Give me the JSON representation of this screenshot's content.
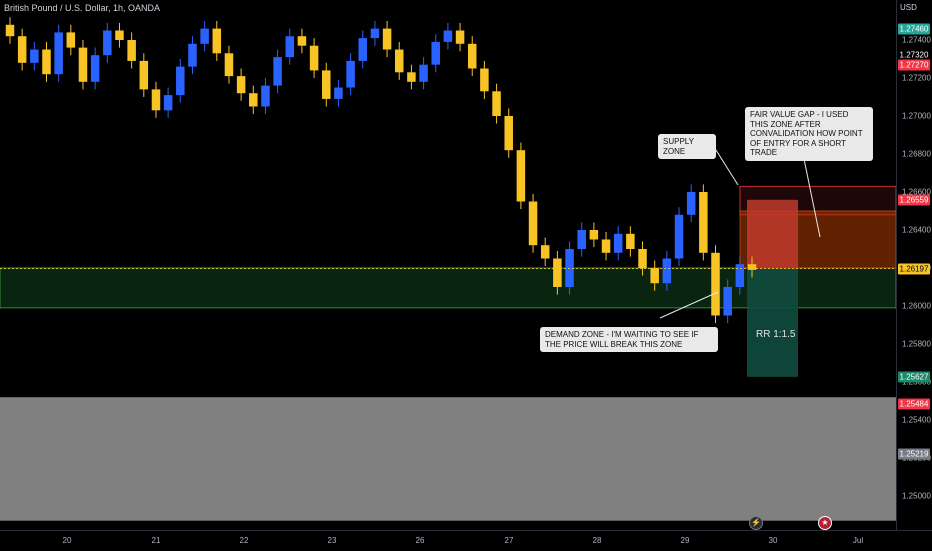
{
  "header": {
    "symbol_title": "British Pound / U.S. Dollar, 1h, OANDA"
  },
  "price_axis": {
    "currency": "USD",
    "ticks": [
      "1.27400",
      "1.27200",
      "1.27000",
      "1.26800",
      "1.26600",
      "1.26400",
      "1.26200",
      "1.26000",
      "1.25800",
      "1.25600",
      "1.25400",
      "1.25200",
      "1.25000"
    ],
    "badges": [
      {
        "label": "1.27460",
        "color": "#26a69a",
        "value": 1.2746
      },
      {
        "label": "1.27320",
        "color": "#000000",
        "value": 1.2732
      },
      {
        "label": "1.27270",
        "color": "#f23645",
        "value": 1.2727
      },
      {
        "label": "1.26559",
        "color": "#f23645",
        "value": 1.26559
      },
      {
        "label": "1.26197",
        "color": "#f7c325",
        "value": 1.26197
      },
      {
        "label": "1.25627",
        "color": "#1b8a6b",
        "value": 1.25627
      },
      {
        "label": "1.25484",
        "color": "#f23645",
        "value": 1.25484
      },
      {
        "label": "1.25219",
        "color": "#787b86",
        "value": 1.25219
      }
    ]
  },
  "time_axis": {
    "labels": [
      "20",
      "21",
      "22",
      "23",
      "26",
      "27",
      "28",
      "29",
      "30",
      "Jul"
    ]
  },
  "annotations": {
    "fvg_note": "FAIR VALUE GAP - I USED THIS ZONE AFTER CONVALIDATION HOW POINT OF ENTRY FOR A SHORT TRADE",
    "supply_note": "SUPPLY ZONE",
    "demand_note": "DEMAND ZONE - I'M WAITING TO SEE IF THE PRICE WILL BREAK THIS ZONE",
    "rr_label": "RR 1:1.5"
  },
  "colors": {
    "bull": "#2962ff",
    "bear": "#f7c325",
    "background": "#000000",
    "supply_zone": "#f23645",
    "demand_zone": "#1d6b2a",
    "fvg_zone": "#b23c00",
    "target_zone": "#0f4d3e",
    "projection_band": "#808080"
  },
  "chart_data": {
    "type": "candlestick",
    "symbol": "GBPUSD",
    "timeframe": "1h",
    "ylim": [
      1.2487,
      1.2752
    ],
    "x": [
      "20",
      "21",
      "22",
      "23",
      "26",
      "27",
      "28",
      "29",
      "30",
      "Jul"
    ],
    "close_series": [
      1.2742,
      1.2728,
      1.2735,
      1.2722,
      1.2744,
      1.2736,
      1.2718,
      1.2732,
      1.2745,
      1.274,
      1.2729,
      1.2714,
      1.2703,
      1.2711,
      1.2726,
      1.2738,
      1.2746,
      1.2733,
      1.2721,
      1.2712,
      1.2705,
      1.2716,
      1.2731,
      1.2742,
      1.2737,
      1.2724,
      1.2709,
      1.2715,
      1.2729,
      1.2741,
      1.2746,
      1.2735,
      1.2723,
      1.2718,
      1.2727,
      1.2739,
      1.2745,
      1.2738,
      1.2725,
      1.2713,
      1.27,
      1.2682,
      1.2655,
      1.2632,
      1.2625,
      1.261,
      1.263,
      1.264,
      1.2635,
      1.2628,
      1.2638,
      1.263,
      1.262,
      1.2612,
      1.2625,
      1.2648,
      1.266,
      1.2628,
      1.2595,
      1.261,
      1.2622,
      1.2619
    ],
    "zones": [
      {
        "name": "SUPPLY ZONE",
        "from": 1.2648,
        "to": 1.2663
      },
      {
        "name": "FAIR VALUE GAP",
        "from": 1.262,
        "to": 1.265
      },
      {
        "name": "DEMAND ZONE",
        "from": 1.2599,
        "to": 1.262
      }
    ],
    "position": {
      "side": "short",
      "entry": 1.26197,
      "stop": 1.26559,
      "target": 1.25627,
      "rr": "1:1.5"
    },
    "projection_band": [
      1.2487,
      1.2552
    ],
    "last_price": 1.26197
  }
}
